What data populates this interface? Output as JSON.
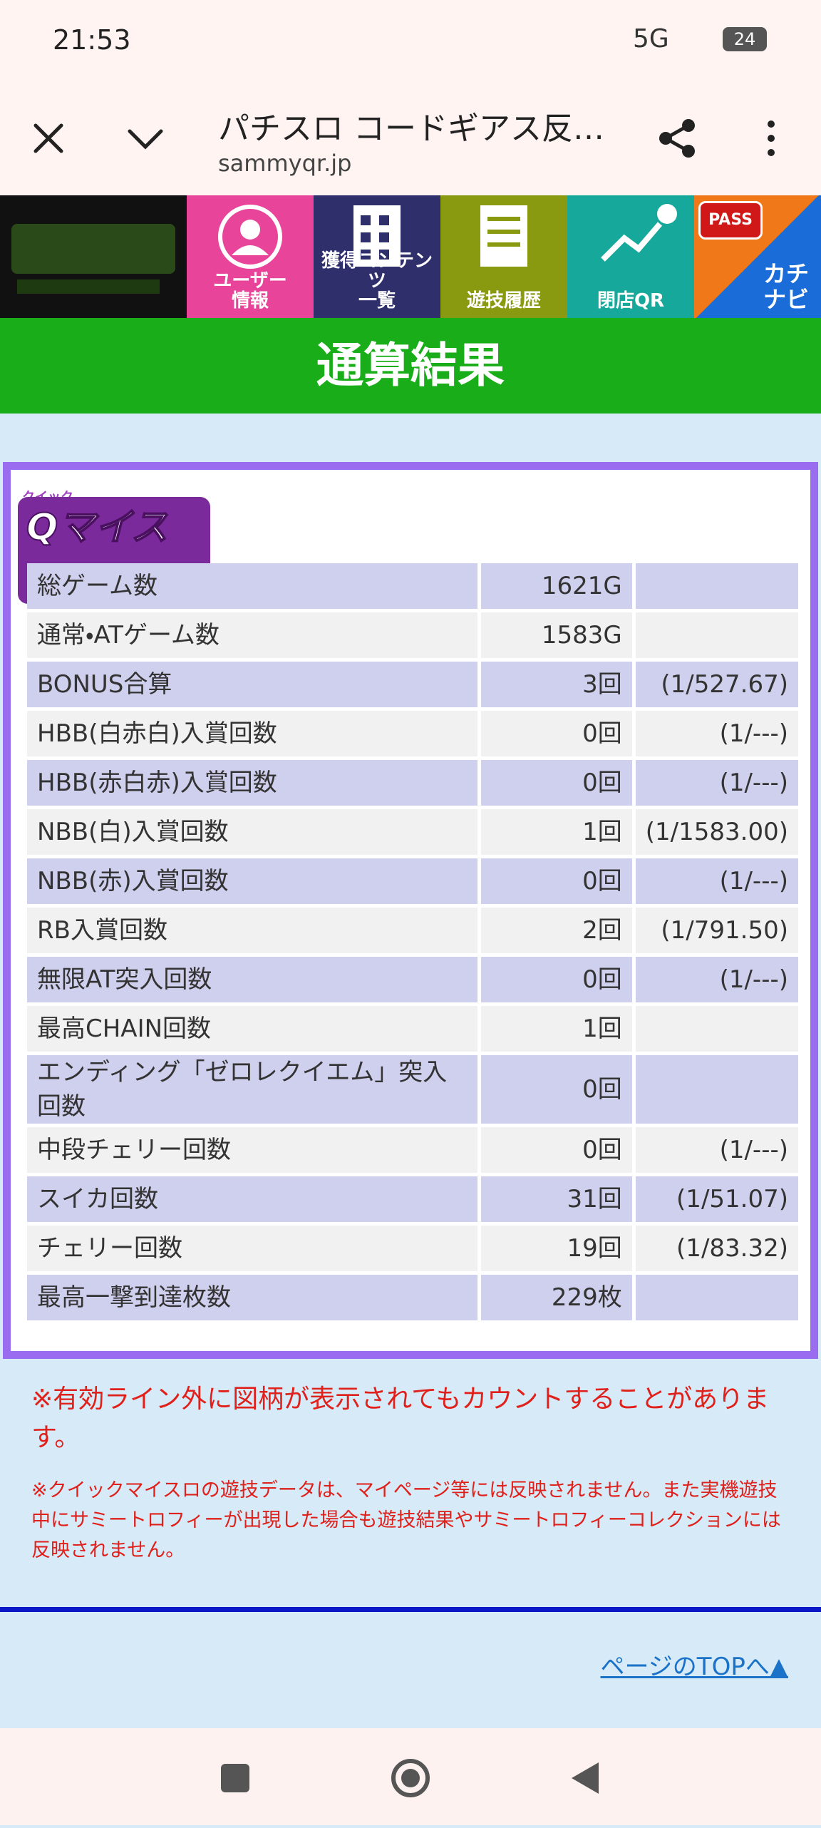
{
  "status_bar": {
    "time": "21:53",
    "network": "5G",
    "battery": "24"
  },
  "browser": {
    "title": "パチスロ コードギアス反…",
    "url": "sammyqr.jp"
  },
  "nav": {
    "items": [
      [
        "ユーザー",
        "情報"
      ],
      [
        "獲得コンテンツ",
        "一覧"
      ],
      [
        "遊技履歴"
      ],
      [
        "閉店QR"
      ]
    ],
    "pass": "PASS",
    "kachinavi": "カチナビ"
  },
  "page_title": "通算結果",
  "logo": {
    "small": "クイック",
    "main": "Qマイスロ"
  },
  "table": {
    "rows": [
      [
        "総ゲーム数",
        "1621G"
      ],
      [
        "通常・ATゲーム数",
        "1583G"
      ],
      [
        "BONUS合算",
        "3回",
        "(1/527.67)"
      ],
      [
        "HBB(白赤白)入賞回数",
        "0回",
        "(1/---)"
      ],
      [
        "HBB(赤白赤)入賞回数",
        "0回",
        "(1/---)"
      ],
      [
        "NBB(白)入賞回数",
        "1回",
        "(1/1583.00)"
      ],
      [
        "NBB(赤)入賞回数",
        "0回",
        "(1/---)"
      ],
      [
        "RB入賞回数",
        "2回",
        "(1/791.50)"
      ],
      [
        "無限AT突入回数",
        "0回",
        "(1/---)"
      ],
      [
        "最高CHAIN回数",
        "1回"
      ],
      [
        "エンディング「ゼロレクイエム」突入回数",
        "0回"
      ],
      [
        "中段チェリー回数",
        "0回",
        "(1/---)"
      ],
      [
        "スイカ回数",
        "31回",
        "(1/51.07)"
      ],
      [
        "チェリー回数",
        "19回",
        "(1/83.32)"
      ],
      [
        "最高一撃到達枚数",
        "229枚"
      ]
    ]
  },
  "notes": [
    "※有効ライン外に図柄が表示されてもカウントすることがあります。",
    "※クイックマイスロの遊技データは、マイページ等には反映されません。また実機遊技中にサミートロフィーが出現した場合も遊技結果やサミートロフィーコレクションには反映されません。"
  ],
  "top_link": "ページのTOPへ▲"
}
